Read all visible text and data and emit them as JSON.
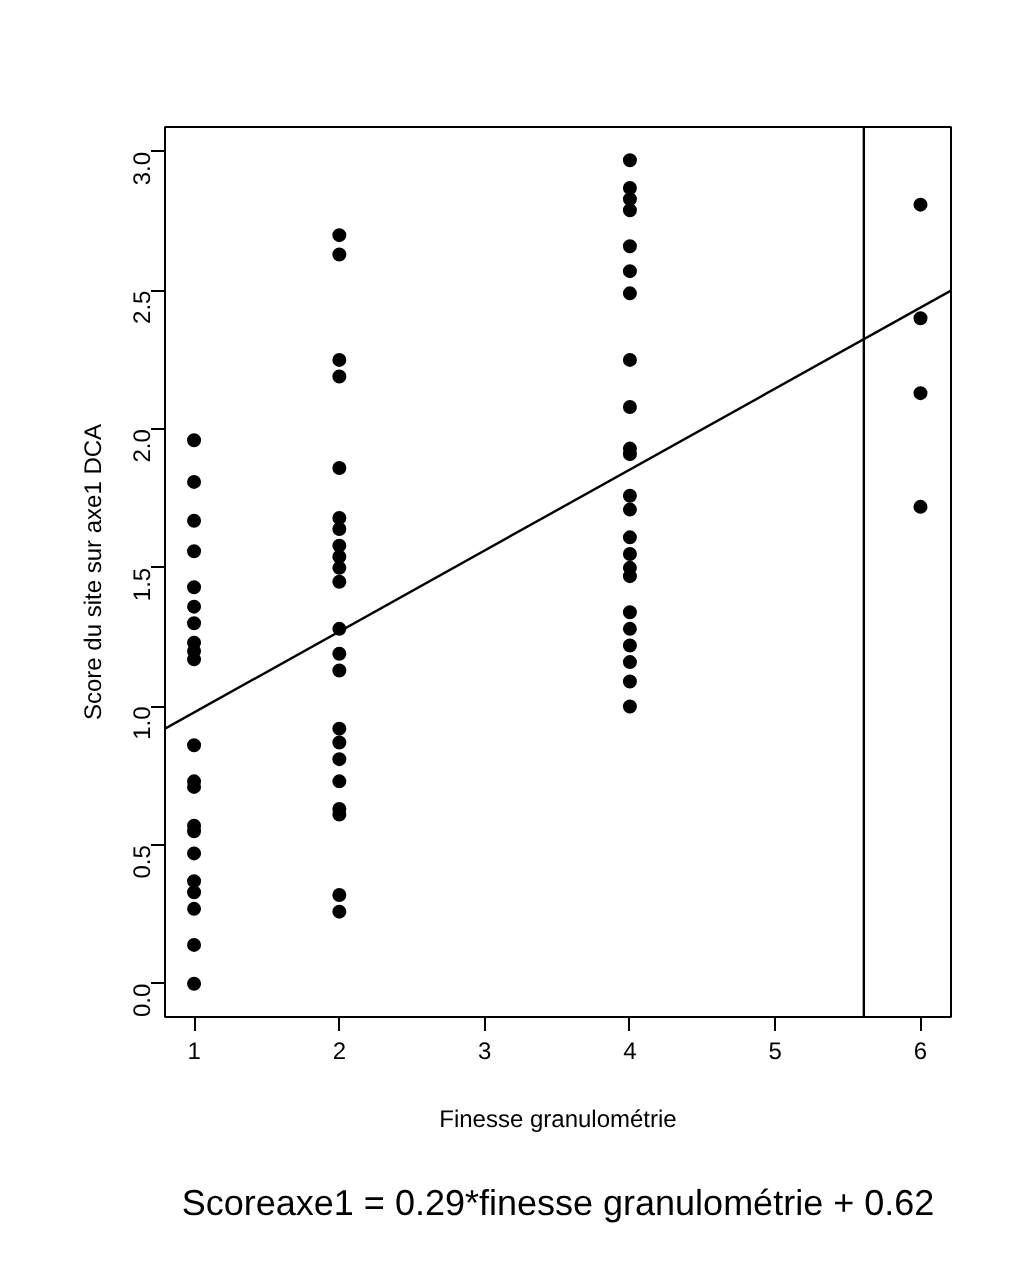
{
  "chart_data": {
    "type": "scatter",
    "xlabel": "Finesse granulométrie",
    "ylabel": "Score du site sur axe1 DCA",
    "xlim": [
      0.8,
      6.21
    ],
    "ylim": [
      -0.12,
      3.09
    ],
    "xticks": [
      1,
      2,
      3,
      4,
      5,
      6
    ],
    "yticks": [
      {
        "value": 0,
        "label": "0.0"
      },
      0.5,
      {
        "value": 1,
        "label": "1.0"
      },
      1.5,
      {
        "value": 2,
        "label": "2.0"
      },
      2.5,
      {
        "value": 3,
        "label": "3.0"
      }
    ],
    "grid": false,
    "marker": "circle",
    "series": [
      {
        "color": "#000000",
        "x": [
          1,
          1,
          1,
          1,
          1,
          1,
          1,
          1,
          1,
          1,
          1,
          1,
          1,
          1,
          1,
          1,
          1,
          1,
          1,
          1,
          1,
          2,
          2,
          2,
          2,
          2,
          2,
          2,
          2,
          2,
          2,
          2,
          2,
          2,
          2,
          2,
          2,
          2,
          2,
          2,
          2,
          2,
          2,
          4,
          4,
          4,
          4,
          4,
          4,
          4,
          4,
          4,
          4,
          4,
          4,
          4,
          4,
          4,
          4,
          4,
          4,
          4,
          4,
          4,
          4,
          4,
          6,
          6,
          6,
          6
        ],
        "values": [
          1.96,
          1.81,
          1.67,
          1.56,
          1.43,
          1.36,
          1.3,
          1.23,
          1.2,
          1.17,
          0.86,
          0.73,
          0.71,
          0.57,
          0.55,
          0.47,
          0.37,
          0.33,
          0.27,
          0.14,
          0.0,
          2.7,
          2.63,
          2.25,
          2.19,
          1.86,
          1.68,
          1.64,
          1.58,
          1.54,
          1.5,
          1.45,
          1.28,
          1.19,
          1.13,
          0.92,
          0.87,
          0.81,
          0.73,
          0.63,
          0.61,
          0.32,
          0.26,
          2.97,
          2.87,
          2.83,
          2.79,
          2.66,
          2.57,
          2.49,
          2.25,
          2.08,
          1.93,
          1.91,
          1.76,
          1.71,
          1.61,
          1.55,
          1.5,
          1.47,
          1.34,
          1.28,
          1.22,
          1.16,
          1.09,
          1.0,
          2.81,
          2.4,
          2.13,
          1.72
        ]
      },
      {
        "type": "line",
        "color": "#000000",
        "line_style": "solid",
        "marker": "none",
        "x": [
          0.8,
          6.21
        ],
        "values": [
          0.92,
          2.5
        ]
      }
    ],
    "ref_lines": [
      {
        "axis": "x",
        "value": 5.61,
        "color": "#000000",
        "line_style": "solid"
      }
    ],
    "annotations": [
      "Scoreaxe1 = 0.29*finesse granulométrie + 0.62"
    ]
  }
}
